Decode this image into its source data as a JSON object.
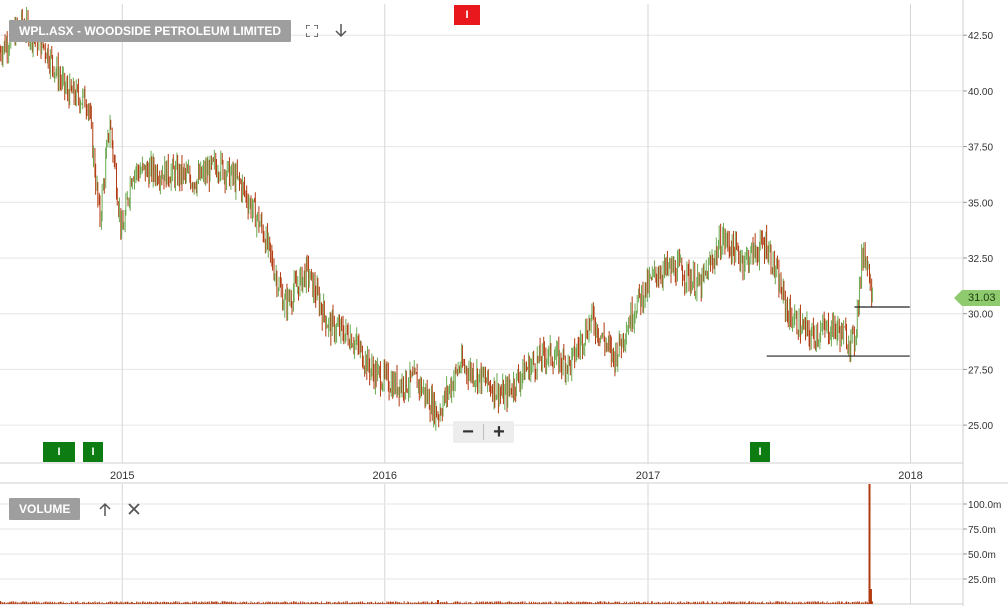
{
  "header": {
    "symbol_title": "WPL.ASX - WOODSIDE PETROLEUM LIMITED",
    "volume_title": "VOLUME",
    "price_tag": "31.03",
    "top_marker": "I"
  },
  "icons": {
    "fullscreen": "fullscreen-icon",
    "download": "arrow-down-icon",
    "move_up": "arrow-up-icon",
    "close": "close-icon",
    "zoom_out": "minus-icon",
    "zoom_in": "plus-icon"
  },
  "zoom": {
    "out_label": "−",
    "in_label": "+"
  },
  "markers": [
    {
      "label": "I",
      "kind": "green"
    },
    {
      "label": "I",
      "kind": "green"
    },
    {
      "label": "I",
      "kind": "green"
    }
  ],
  "colors": {
    "up": "#6aa84f",
    "down": "#b23a10",
    "grid": "#e6e6e6",
    "price_tag_bg": "#8fca6e",
    "marker_green": "#0d7d13",
    "marker_red": "#e8181c",
    "pill_bg": "#9e9e9e"
  },
  "chart_data": [
    {
      "type": "line",
      "style": "ohlc-bars",
      "title": "WPL.ASX - WOODSIDE PETROLEUM LIMITED",
      "xlabel": "",
      "ylabel": "",
      "x_ticks": [
        "2015",
        "2016",
        "2017",
        "2018"
      ],
      "y_ticks": [
        "25.00",
        "27.50",
        "30.00",
        "32.50",
        "35.00",
        "37.50",
        "40.00",
        "42.50"
      ],
      "ylim": [
        23.3,
        43.9
      ],
      "xlim": [
        "2014-07-15",
        "2018-03-15"
      ],
      "last_price": 31.03,
      "grid": true,
      "horizontal_lines": [
        {
          "y": 28.1,
          "x_from": "2017-06-15",
          "x_to": "2017-12-31"
        },
        {
          "y": 30.3,
          "x_from": "2017-10-15",
          "x_to": "2017-12-31"
        }
      ],
      "series": [
        {
          "x": [
            "2014-07-15",
            "2014-08-15",
            "2014-09-15",
            "2014-10-15",
            "2014-11-15",
            "2014-12-01",
            "2014-12-15",
            "2015-01-01",
            "2015-01-15",
            "2015-02-15",
            "2015-03-15",
            "2015-04-15",
            "2015-05-15",
            "2015-06-15",
            "2015-07-15",
            "2015-08-15",
            "2015-09-15",
            "2015-10-15",
            "2015-11-15",
            "2015-12-15",
            "2016-01-15",
            "2016-02-15",
            "2016-03-15",
            "2016-04-15",
            "2016-05-15",
            "2016-06-15",
            "2016-07-15",
            "2016-08-15",
            "2016-09-15",
            "2016-10-15",
            "2016-11-15",
            "2016-12-15",
            "2017-01-15",
            "2017-02-15",
            "2017-03-15",
            "2017-04-15",
            "2017-05-15",
            "2017-06-15",
            "2017-07-15",
            "2017-08-15",
            "2017-09-15",
            "2017-10-15",
            "2017-10-28",
            "2017-11-10"
          ],
          "values": [
            41.8,
            43.0,
            42.0,
            40.0,
            39.5,
            34.2,
            38.6,
            33.5,
            36.4,
            36.4,
            36.3,
            36.0,
            36.7,
            35.8,
            33.8,
            30.4,
            31.9,
            29.5,
            29.0,
            27.4,
            26.8,
            27.0,
            25.5,
            27.7,
            27.1,
            26.3,
            27.5,
            28.2,
            27.7,
            29.8,
            28.0,
            30.4,
            31.9,
            32.0,
            31.2,
            33.4,
            32.4,
            33.2,
            30.0,
            29.0,
            29.4,
            28.7,
            33.0,
            31.03
          ]
        }
      ]
    },
    {
      "type": "bar",
      "title": "VOLUME",
      "y_ticks": [
        "25.0m",
        "50.0m",
        "75.0m",
        "100.0m"
      ],
      "ylim": [
        0,
        120
      ],
      "grid": true,
      "x": [
        "2014-07-15",
        "2016-03-15",
        "2017-11-05",
        "2017-11-07"
      ],
      "values": [
        3,
        4,
        120,
        15
      ]
    }
  ]
}
